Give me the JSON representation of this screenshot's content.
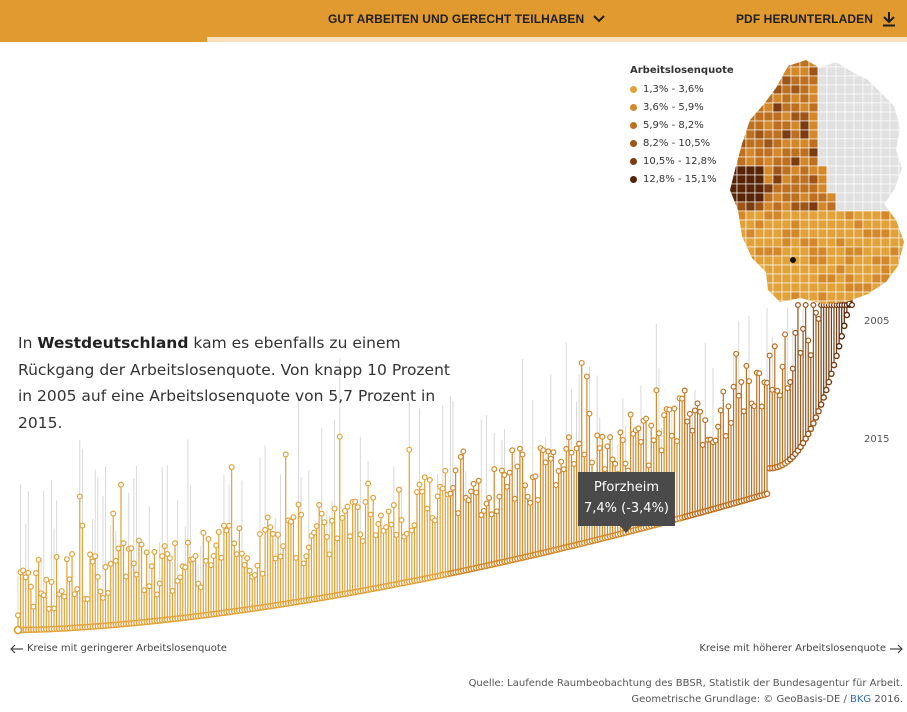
{
  "header": {
    "nav_title": "GUT ARBEITEN UND GERECHT TEILHABEN",
    "pdf_label": "PDF HERUNTERLADEN",
    "progress": 0.228
  },
  "text": {
    "lead_pre": "In ",
    "lead_bold": "Westdeutschland",
    "lead_post": " kam es ebenfalls zu einem Rückgang der Arbeitslosenquote. Von knapp 10 Prozent in 2005 auf eine Arbeitslosenquote von 5,7 Prozent in 2015."
  },
  "legend": {
    "title": "Arbeitslosenquote",
    "items": [
      {
        "label": "1,3% - 3,6%",
        "color": "#e2a23a"
      },
      {
        "label": "3,6% - 5,9%",
        "color": "#d3892a"
      },
      {
        "label": "5,9% - 8,2%",
        "color": "#bd7020"
      },
      {
        "label": "8,2% - 10,5%",
        "color": "#9d5518"
      },
      {
        "label": "10,5% - 12,8%",
        "color": "#7a3c10"
      },
      {
        "label": "12,8% - 15,1%",
        "color": "#582407"
      }
    ]
  },
  "chart_data": {
    "type": "scatter",
    "description_keys": [
      "districts sorted by 2015 unemployment rate; stems from 2015 value to 2005 value"
    ],
    "series": [
      {
        "name": "2015"
      },
      {
        "name": "2005"
      }
    ],
    "count": 325,
    "rate_2015_range": [
      1.3,
      15.1
    ],
    "highlight": {
      "name": "Pforzheim",
      "value_label": "7,4% (-3,4%)",
      "rate_2015": 7.4,
      "change": -3.4
    },
    "year_labels": {
      "y2005": "2005",
      "y2015": "2015"
    },
    "x_left_label": "Kreise mit geringerer Arbeitslosenquote",
    "x_right_label": "Kreise mit höherer Arbeitslosenquote",
    "colors": {
      "grid_grey": "#d9d9d9",
      "accent": "#e09a2f"
    }
  },
  "source": {
    "line1": "Quelle: Laufende Raumbeobachtung des BBSR, Statistik der Bundesagentur für Arbeit.",
    "line2_pre": "Geometrische Grundlage: © GeoBasis-DE / ",
    "line2_link": "BKG",
    "line2_post": " 2016."
  }
}
